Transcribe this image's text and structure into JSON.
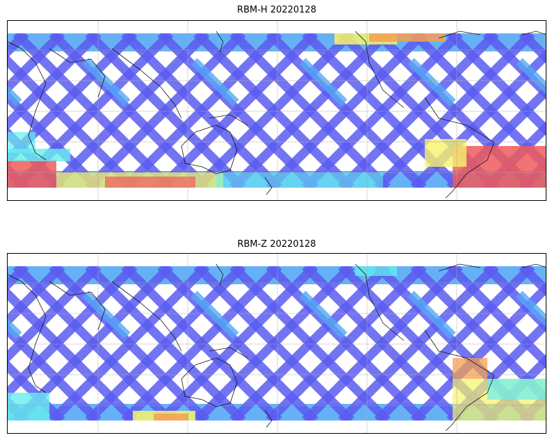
{
  "panels": [
    {
      "id": "rbm-h",
      "title": "RBM-H 20220128"
    },
    {
      "id": "rbm-z",
      "title": "RBM-Z 20220128"
    }
  ],
  "colors": {
    "low": "#5b5cf0",
    "mid_low": "#55a8f5",
    "mid": "#66eeee",
    "mid_high": "#f7f36a",
    "high": "#ee5b5b"
  }
}
